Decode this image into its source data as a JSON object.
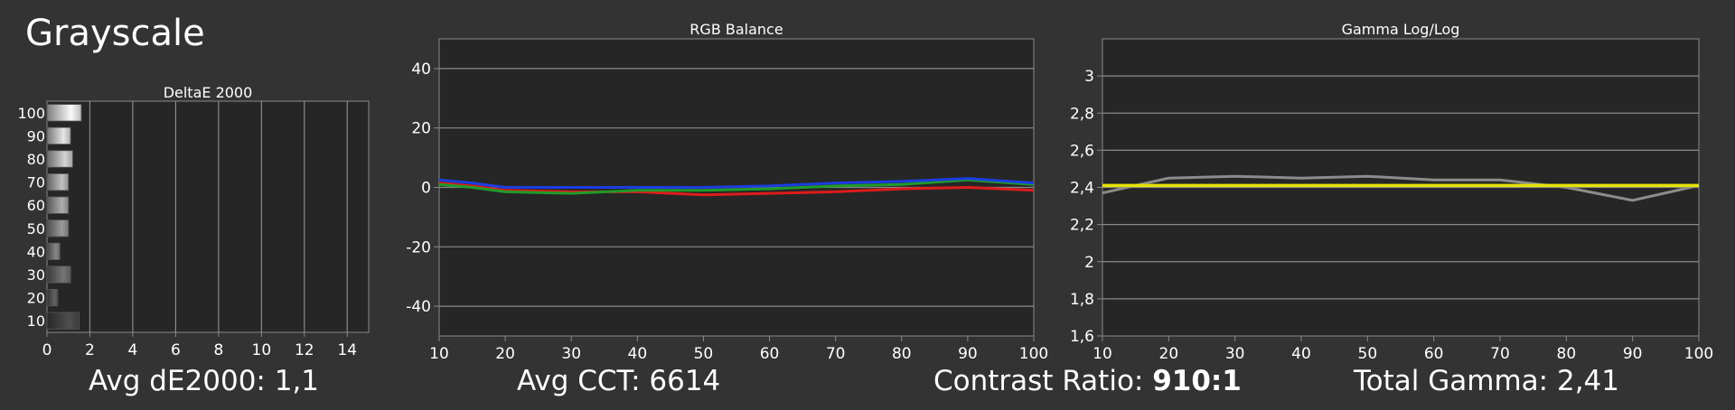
{
  "page": {
    "title": "Grayscale"
  },
  "colors": {
    "background": "#333333",
    "plot_bg": "#262626",
    "grid": "#8a8a8a",
    "axis_text": "#ffffff",
    "red": "#dd1c1c",
    "green": "#1f9b2a",
    "blue": "#1c3de0",
    "gamma_measured": "#8c8c8c",
    "gamma_target": "#e8e20a"
  },
  "stats": {
    "avg_de": {
      "label": "Avg dE2000: ",
      "value": "1,1"
    },
    "avg_cct": {
      "label": "Avg CCT: ",
      "value": "6614"
    },
    "contrast": {
      "label": "Contrast Ratio: ",
      "value": "910:1"
    },
    "total_gamma": {
      "label": "Total Gamma: ",
      "value": "2,41"
    }
  },
  "chart_data": [
    {
      "id": "deltae",
      "type": "bar",
      "orientation": "horizontal",
      "title": "DeltaE 2000",
      "categories": [
        "100",
        "90",
        "80",
        "70",
        "60",
        "50",
        "40",
        "30",
        "20",
        "10"
      ],
      "values": [
        1.6,
        1.1,
        1.2,
        1.0,
        1.0,
        1.0,
        0.6,
        1.1,
        0.5,
        1.5
      ],
      "xlim": [
        0,
        15
      ],
      "xticks": [
        0,
        2,
        4,
        6,
        8,
        10,
        12,
        14
      ],
      "xtick_labels": [
        "0",
        "2",
        "4",
        "6",
        "8",
        "10",
        "12",
        "14"
      ],
      "grid": true
    },
    {
      "id": "rgb_balance",
      "type": "line",
      "title": "RGB Balance",
      "x": [
        10,
        15,
        20,
        30,
        40,
        50,
        60,
        70,
        80,
        90,
        100
      ],
      "xlim": [
        10,
        100
      ],
      "ylim": [
        -50,
        50
      ],
      "xticks": [
        10,
        20,
        30,
        40,
        50,
        60,
        70,
        80,
        90,
        100
      ],
      "xtick_labels": [
        "10",
        "20",
        "30",
        "40",
        "50",
        "60",
        "70",
        "80",
        "90",
        "100"
      ],
      "yticks": [
        40,
        20,
        0,
        -20,
        -40
      ],
      "ytick_labels": [
        "40",
        "20",
        "0",
        "-20",
        "-40"
      ],
      "series": [
        {
          "color": "red",
          "values": [
            1.5,
            0.5,
            -1.0,
            -1.5,
            -1.5,
            -2.5,
            -2.0,
            -1.5,
            -0.5,
            0.0,
            -1.0
          ]
        },
        {
          "color": "green",
          "values": [
            1.0,
            0.0,
            -1.5,
            -2.0,
            -1.0,
            -1.0,
            -0.5,
            0.5,
            1.0,
            2.5,
            1.0
          ]
        },
        {
          "color": "blue",
          "values": [
            2.5,
            1.5,
            0.0,
            0.0,
            0.0,
            0.0,
            0.5,
            1.5,
            2.0,
            3.0,
            1.5
          ]
        }
      ],
      "grid": true
    },
    {
      "id": "gamma",
      "type": "line",
      "title": "Gamma Log/Log",
      "x": [
        10,
        20,
        30,
        40,
        50,
        60,
        70,
        80,
        90,
        100
      ],
      "xlim": [
        10,
        100
      ],
      "ylim": [
        1.6,
        3.2
      ],
      "xticks": [
        10,
        20,
        30,
        40,
        50,
        60,
        70,
        80,
        90,
        100
      ],
      "xtick_labels": [
        "10",
        "20",
        "30",
        "40",
        "50",
        "60",
        "70",
        "80",
        "90",
        "100"
      ],
      "yticks": [
        3,
        2.8,
        2.6,
        2.4,
        2.2,
        2,
        1.8,
        1.6
      ],
      "ytick_labels": [
        "3",
        "2,8",
        "2,6",
        "2,4",
        "2,2",
        "2",
        "1,8",
        "1,6"
      ],
      "series": [
        {
          "color": "gamma_measured",
          "values": [
            2.37,
            2.45,
            2.46,
            2.45,
            2.46,
            2.44,
            2.44,
            2.4,
            2.33,
            2.41
          ]
        },
        {
          "color": "gamma_target",
          "values": [
            2.41,
            2.41,
            2.41,
            2.41,
            2.41,
            2.41,
            2.41,
            2.41,
            2.41,
            2.41
          ]
        }
      ],
      "grid": true
    }
  ]
}
